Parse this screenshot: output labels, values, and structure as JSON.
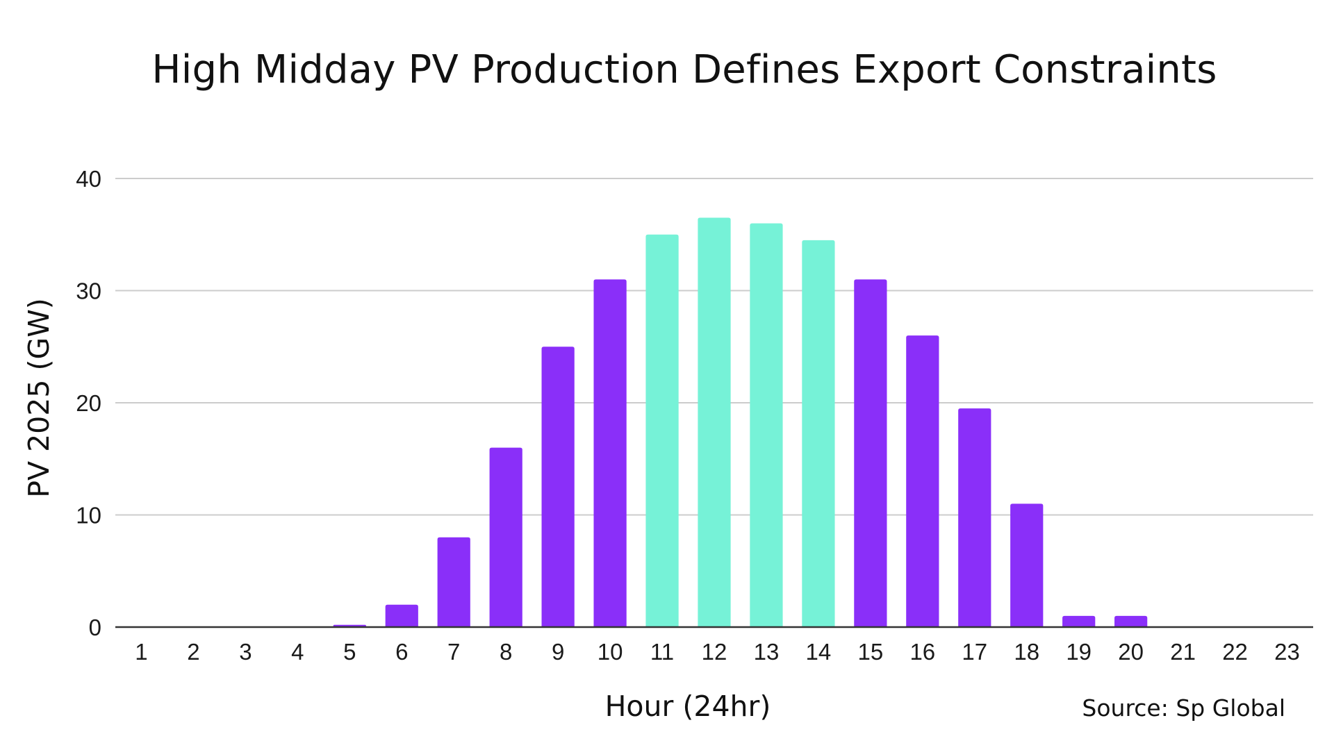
{
  "chart_data": {
    "type": "bar",
    "title": "High Midday PV Production Defines Export Constraints",
    "xlabel": "Hour (24hr)",
    "ylabel": "PV 2025 (GW)",
    "categories": [
      "1",
      "2",
      "3",
      "4",
      "5",
      "6",
      "7",
      "8",
      "9",
      "10",
      "11",
      "12",
      "13",
      "14",
      "15",
      "16",
      "17",
      "18",
      "19",
      "20",
      "21",
      "22",
      "23"
    ],
    "values": [
      0,
      0,
      0,
      0,
      0.2,
      2,
      8,
      16,
      25,
      31,
      35,
      36.5,
      36,
      34.5,
      31,
      26,
      19.5,
      11,
      1,
      1,
      0,
      0,
      0
    ],
    "highlight_categories": [
      "11",
      "12",
      "13",
      "14"
    ],
    "ylim": [
      0,
      40
    ],
    "yticks": [
      0,
      10,
      20,
      30,
      40
    ],
    "grid": true,
    "colors": {
      "default": "#8a2ff9",
      "highlight": "#76f2d7",
      "grid": "#cccccc",
      "axis": "#333333"
    }
  },
  "source": "Source: Sp Global"
}
